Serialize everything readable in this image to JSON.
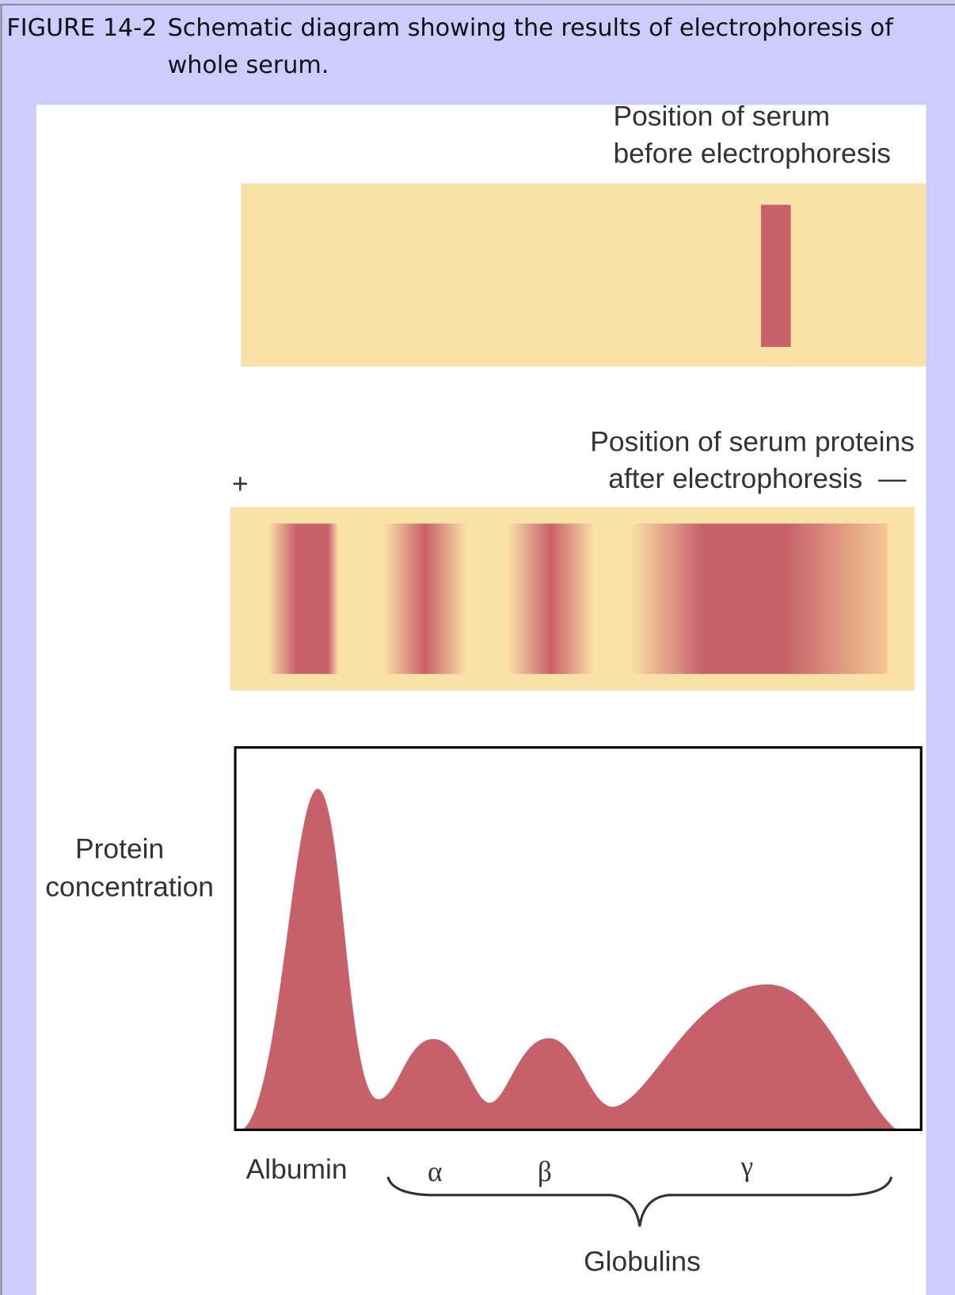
{
  "caption": {
    "label": "FIGURE 14-2",
    "text_lines": [
      "Schematic diagram showing the results of electrophoresis of",
      "whole serum."
    ]
  },
  "figure": {
    "before_label": [
      "Position of serum",
      "before electrophoresis"
    ],
    "after_label": [
      "Position of serum proteins",
      "after electrophoresis"
    ],
    "positive_sign": "+",
    "negative_sign": "—",
    "y_axis_label": [
      "Protein",
      "concentration"
    ],
    "band_labels": [
      "Albumin",
      "α",
      "β",
      "γ"
    ],
    "group_label": "Globulins"
  }
}
